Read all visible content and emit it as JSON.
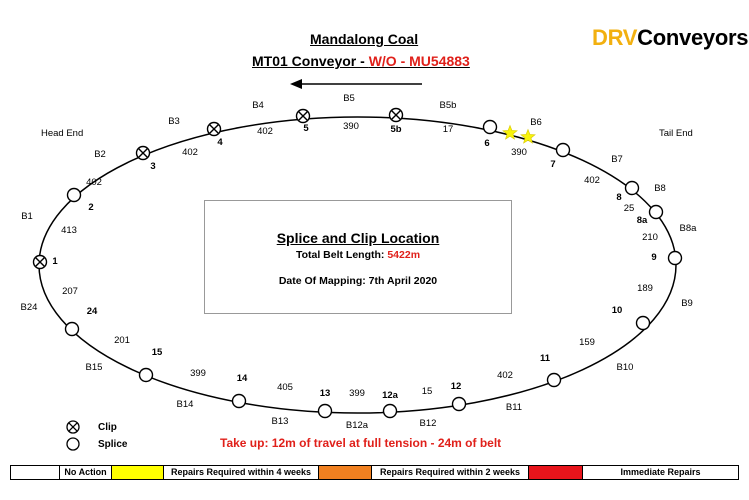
{
  "header": {
    "title": "Mandalong Coal",
    "subtitle_prefix": "MT01 Conveyor - ",
    "subtitle_wo": "W/O - MU54883",
    "direction_arrow_icon": "arrow-left-icon"
  },
  "logo": {
    "part_a": "DRV",
    "part_b": "Conveyors"
  },
  "colors": {
    "red": "#e0201a",
    "logo_yellow": "#f2b010",
    "star": "#f7f20c",
    "yellow": "#ffff00",
    "orange": "#f08020",
    "red_key": "#e8141b"
  },
  "ends": {
    "head": "Head End",
    "tail": "Tail End"
  },
  "info_box": {
    "title": "Splice and Clip Location",
    "belt_length_label": "Total Belt Length: ",
    "belt_length_value": "5422m",
    "date_label": "Date Of Mapping: 7th April 2020"
  },
  "take_up": "Take up: 12m of travel at full tension - 24m of belt",
  "legend": {
    "clip": "Clip",
    "splice": "Splice"
  },
  "nodes": [
    {
      "id": "1",
      "type": "clip"
    },
    {
      "id": "2",
      "type": "splice"
    },
    {
      "id": "3",
      "type": "clip"
    },
    {
      "id": "4",
      "type": "clip"
    },
    {
      "id": "5",
      "type": "clip"
    },
    {
      "id": "5b",
      "type": "clip"
    },
    {
      "id": "6",
      "type": "splice"
    },
    {
      "id": "7",
      "type": "splice"
    },
    {
      "id": "8",
      "type": "splice"
    },
    {
      "id": "8a",
      "type": "splice"
    },
    {
      "id": "9",
      "type": "splice"
    },
    {
      "id": "10",
      "type": "splice"
    },
    {
      "id": "11",
      "type": "splice"
    },
    {
      "id": "12",
      "type": "splice"
    },
    {
      "id": "12a",
      "type": "splice"
    },
    {
      "id": "13",
      "type": "splice"
    },
    {
      "id": "14",
      "type": "splice"
    },
    {
      "id": "15",
      "type": "splice"
    },
    {
      "id": "24",
      "type": "splice"
    }
  ],
  "segment_lengths": [
    "413",
    "402",
    "402",
    "402",
    "390",
    "17",
    "390",
    "402",
    "25",
    "210",
    "189",
    "159",
    "402",
    "15",
    "399",
    "405",
    "399",
    "201",
    "207"
  ],
  "belt_labels": [
    "B1",
    "B2",
    "B3",
    "B4",
    "B5",
    "B5b",
    "B6",
    "B7",
    "B8",
    "B8a",
    "B9",
    "B10",
    "B11",
    "B12",
    "B12a",
    "B13",
    "B14",
    "B15",
    "B24"
  ],
  "damage_markers": [
    {
      "type": "star-icon"
    },
    {
      "type": "star-icon"
    }
  ],
  "key": [
    {
      "label": "",
      "color": "#ffffff"
    },
    {
      "label": "No Action",
      "color": "#ffffff"
    },
    {
      "label": "",
      "color": "#ffff00"
    },
    {
      "label": "Repairs Required within 4 weeks",
      "color": "#ffffff"
    },
    {
      "label": "",
      "color": "#f08020"
    },
    {
      "label": "Repairs Required within 2 weeks",
      "color": "#ffffff"
    },
    {
      "label": "",
      "color": "#e8141b"
    },
    {
      "label": "Immediate Repairs",
      "color": "#ffffff"
    }
  ]
}
